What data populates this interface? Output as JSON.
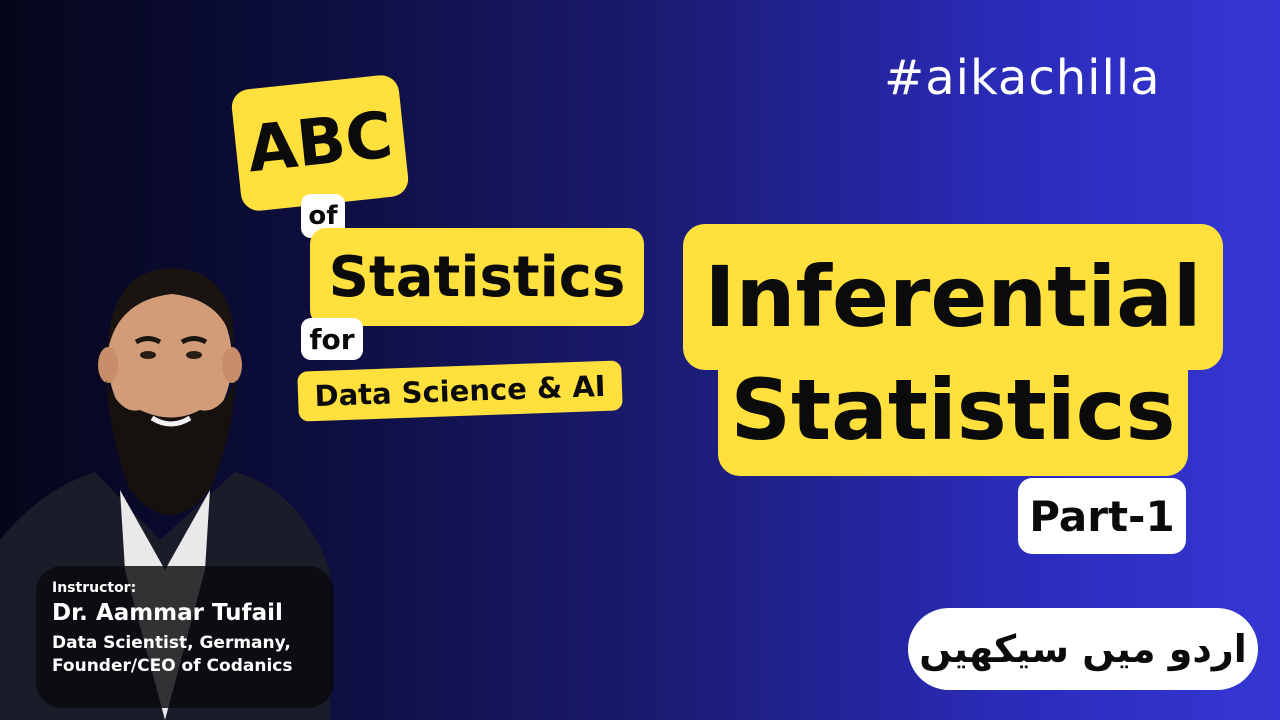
{
  "hashtag": "#aikachilla",
  "series": {
    "abc": "ABC",
    "of": "of",
    "statistics": "Statistics",
    "for": "for",
    "subtitle": "Data Science & AI"
  },
  "topic": {
    "line1": "Inferential",
    "line2": "Statistics",
    "part": "Part-1"
  },
  "urdu_label": "اردو میں سیکھیں",
  "instructor": {
    "label": "Instructor:",
    "name": "Dr. Aammar Tufail",
    "role_line1": "Data Scientist, Germany,",
    "role_line2": "Founder/CEO of Codanics"
  },
  "colors": {
    "accent_yellow": "#ffe03d",
    "bg_left": "#05061a",
    "bg_right": "#3636d4"
  },
  "icons": [
    "person-portrait-photo"
  ]
}
